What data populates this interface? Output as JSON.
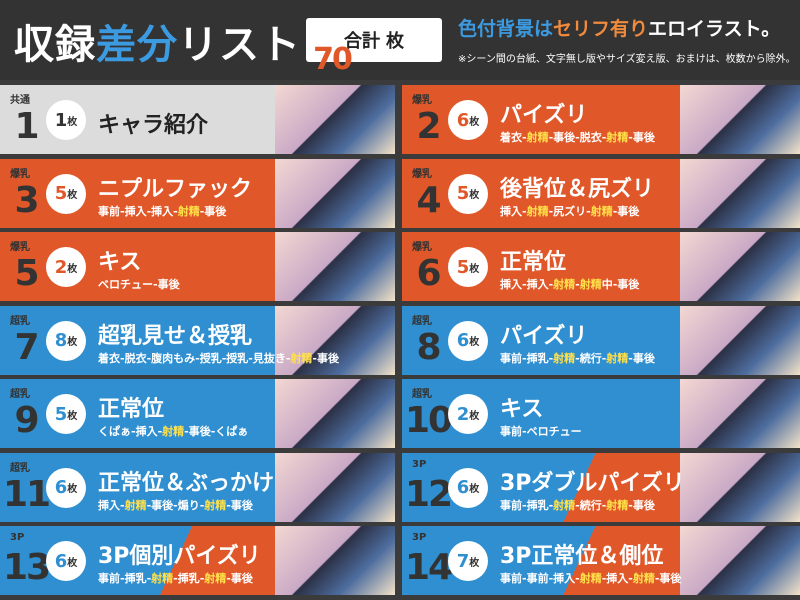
{
  "header": {
    "title": {
      "before": "収録",
      "accent": "差分",
      "after": "リスト"
    },
    "total": {
      "label": "合計",
      "count": "70",
      "unit": "枚"
    },
    "tagline": {
      "blue": "色付背景は",
      "orange": "セリフ有り",
      "white": "エロイラスト。"
    },
    "note": "※シーン間の台紙、文字無し版やサイズ変え版、おまけは、枚数から除外。"
  },
  "highlight": "射精",
  "unit": "枚",
  "cards": [
    {
      "tag": "共通",
      "number": "1",
      "count": "1",
      "title": "キャラ紹介",
      "detail": "",
      "style": "gray"
    },
    {
      "tag": "爆乳",
      "number": "2",
      "count": "6",
      "title": "パイズリ",
      "detail": "着衣-射精-事後-脱衣-射精-事後",
      "style": "orange"
    },
    {
      "tag": "爆乳",
      "number": "3",
      "count": "5",
      "title": "ニプルファック",
      "detail": "事前-挿入-挿入-射精-事後",
      "style": "orange"
    },
    {
      "tag": "爆乳",
      "number": "4",
      "count": "5",
      "title": "後背位＆尻ズリ",
      "detail": "挿入-射精-尻ズリ-射精-事後",
      "style": "orange"
    },
    {
      "tag": "爆乳",
      "number": "5",
      "count": "2",
      "title": "キス",
      "detail": "ベロチュー-事後",
      "style": "orange"
    },
    {
      "tag": "爆乳",
      "number": "6",
      "count": "5",
      "title": "正常位",
      "detail": "挿入-挿入-射精-射精中-事後",
      "style": "orange"
    },
    {
      "tag": "超乳",
      "number": "7",
      "count": "8",
      "title": "超乳見せ＆授乳",
      "detail": "着衣-脱衣-腹肉もみ-授乳-授乳-見抜き-射精-事後",
      "style": "blue"
    },
    {
      "tag": "超乳",
      "number": "8",
      "count": "6",
      "title": "パイズリ",
      "detail": "事前-挿乳-射精-続行-射精-事後",
      "style": "blue"
    },
    {
      "tag": "超乳",
      "number": "9",
      "count": "5",
      "title": "正常位",
      "detail": "くぱぁ-挿入-射精-事後-くぱぁ",
      "style": "blue"
    },
    {
      "tag": "超乳",
      "number": "10",
      "count": "2",
      "title": "キス",
      "detail": "事前-ベロチュー",
      "style": "blue"
    },
    {
      "tag": "超乳",
      "number": "11",
      "count": "6",
      "title": "正常位＆ぶっかけ",
      "detail": "挿入-射精-事後-煽り-射精-事後",
      "style": "blue"
    },
    {
      "tag": "3P",
      "number": "12",
      "count": "6",
      "title": "3Pダブルパイズリ",
      "detail": "事前-挿乳-射精-続行-射精-事後",
      "style": "split"
    },
    {
      "tag": "3P",
      "number": "13",
      "count": "6",
      "title": "3P個別パイズリ",
      "detail": "事前-挿乳-射精-挿乳-射精-事後",
      "style": "split"
    },
    {
      "tag": "3P",
      "number": "14",
      "count": "7",
      "title": "3P正常位＆側位",
      "detail": "事前-事前-挿入-射精-挿入-射精-事後",
      "style": "split"
    }
  ]
}
